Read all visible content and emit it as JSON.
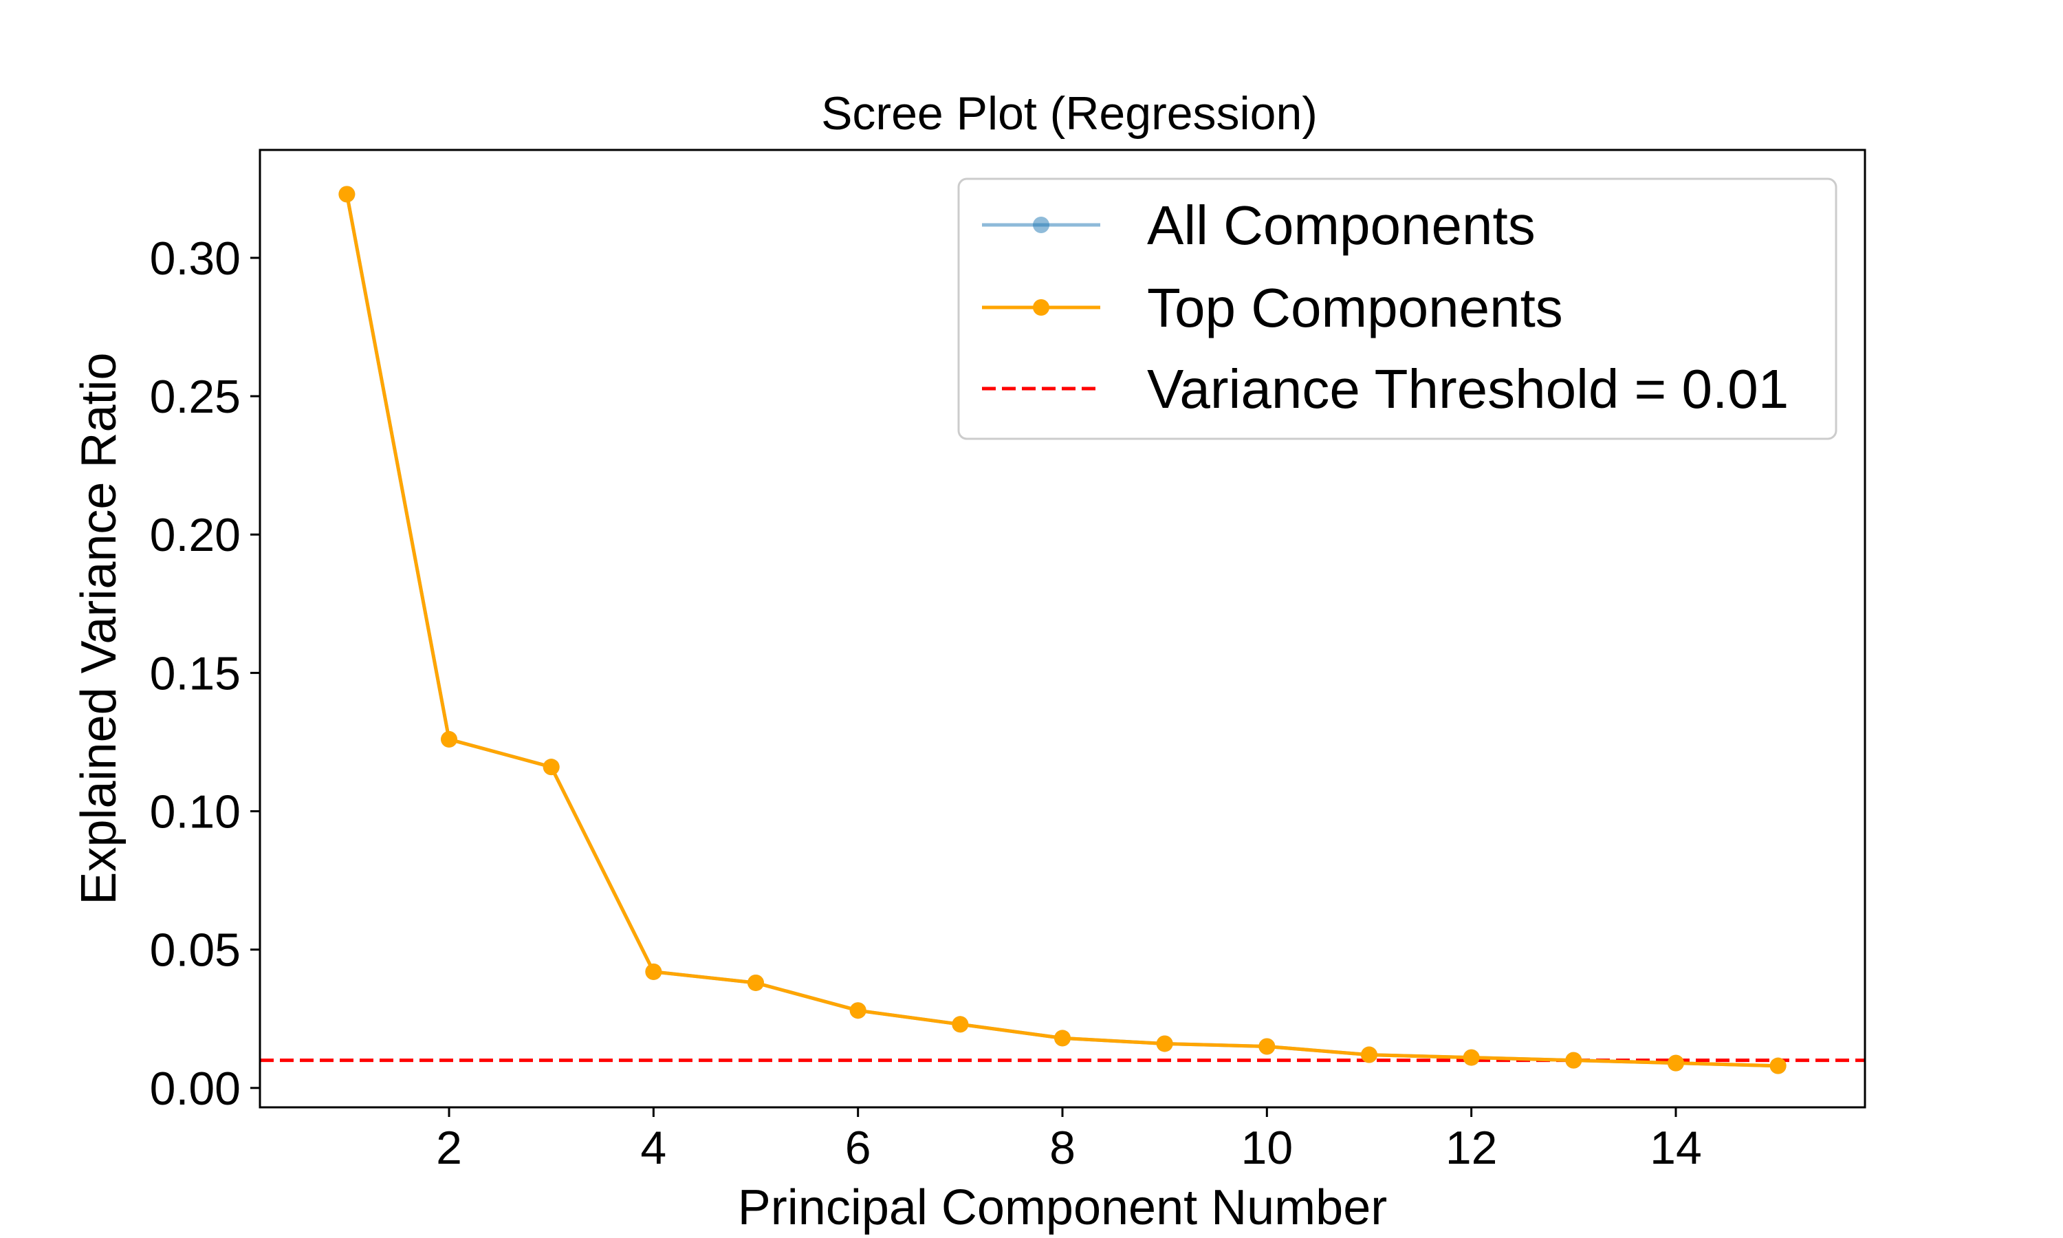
{
  "chart_data": {
    "type": "line",
    "title": "Scree Plot (Regression)",
    "xlabel": "Principal Component Number",
    "ylabel": "Explained Variance Ratio",
    "xlim": [
      0.15,
      15.85
    ],
    "ylim": [
      -0.007,
      0.339
    ],
    "xticks": [
      2,
      4,
      6,
      8,
      10,
      12,
      14
    ],
    "yticks": [
      0.0,
      0.05,
      0.1,
      0.15,
      0.2,
      0.25,
      0.3
    ],
    "ytick_labels": [
      "0.00",
      "0.05",
      "0.10",
      "0.15",
      "0.20",
      "0.25",
      "0.30"
    ],
    "grid": false,
    "legend_position": "top-right",
    "series": [
      {
        "name": "All Components",
        "color": "#1f77b4",
        "opacity": 0.5,
        "marker": "circle",
        "x": [
          1,
          2,
          3,
          4,
          5,
          6,
          7,
          8,
          9,
          10,
          11,
          12,
          13,
          14,
          15
        ],
        "values": [
          0.323,
          0.126,
          0.116,
          0.042,
          0.038,
          0.028,
          0.023,
          0.018,
          0.016,
          0.015,
          0.012,
          0.011,
          0.01,
          0.009,
          0.008
        ]
      },
      {
        "name": "Top Components",
        "color": "#ffa500",
        "opacity": 1.0,
        "marker": "circle",
        "x": [
          1,
          2,
          3,
          4,
          5,
          6,
          7,
          8,
          9,
          10,
          11,
          12,
          13,
          14,
          15
        ],
        "values": [
          0.323,
          0.126,
          0.116,
          0.042,
          0.038,
          0.028,
          0.023,
          0.018,
          0.016,
          0.015,
          0.012,
          0.011,
          0.01,
          0.009,
          0.008
        ]
      }
    ],
    "threshold": {
      "name": "Variance Threshold = 0.01",
      "value": 0.01,
      "color": "#ff0000",
      "style": "dashed"
    }
  }
}
